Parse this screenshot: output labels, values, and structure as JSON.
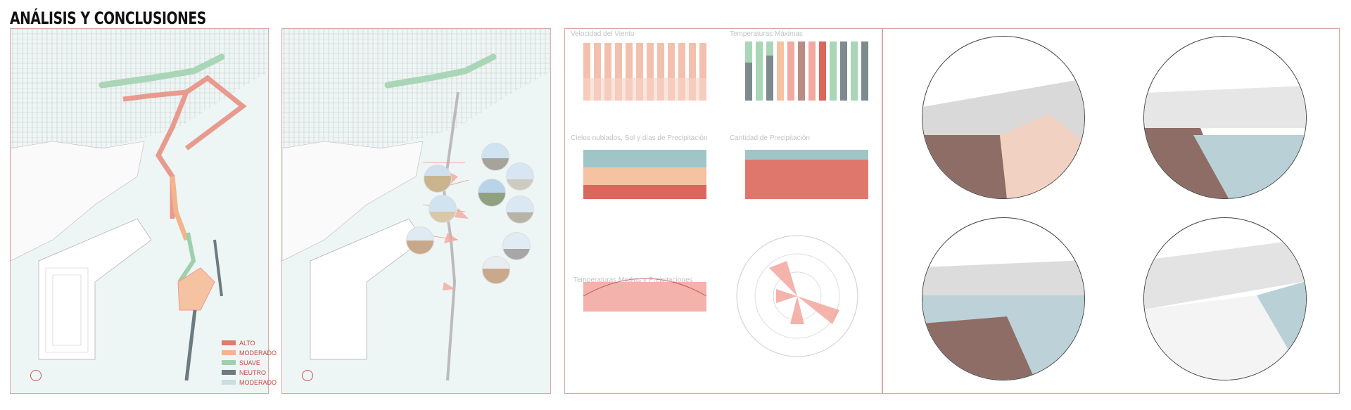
{
  "page": {
    "title": "ANÁLISIS Y CONCLUSIONES"
  },
  "legend": {
    "items": [
      {
        "label": "ALTO",
        "color": "#e07a6f"
      },
      {
        "label": "MODERADO",
        "color": "#f3b48c"
      },
      {
        "label": "SUAVE",
        "color": "#9fcfae"
      },
      {
        "label": "NEUTRO",
        "color": "#6b7b7f"
      },
      {
        "label": "MODERADO",
        "color": "#c9dede"
      }
    ]
  },
  "charts": {
    "wind": {
      "title": "Velocidad del Viento"
    },
    "tmax": {
      "title": "Temperaturas Máximas"
    },
    "clouds": {
      "title": "Cielos nublados, Sol y días de Precipitación"
    },
    "precip": {
      "title": "Cantidad de Precipitación"
    },
    "tmed": {
      "title": "Temperaturas Medias y Preipitaciones"
    }
  },
  "colors": {
    "salmon": "#e99a8e",
    "peach": "#f6c3a2",
    "teal": "#9fc5c7",
    "grey": "#7d8a8e",
    "green": "#a9d6b6",
    "red": "#d9675c"
  }
}
